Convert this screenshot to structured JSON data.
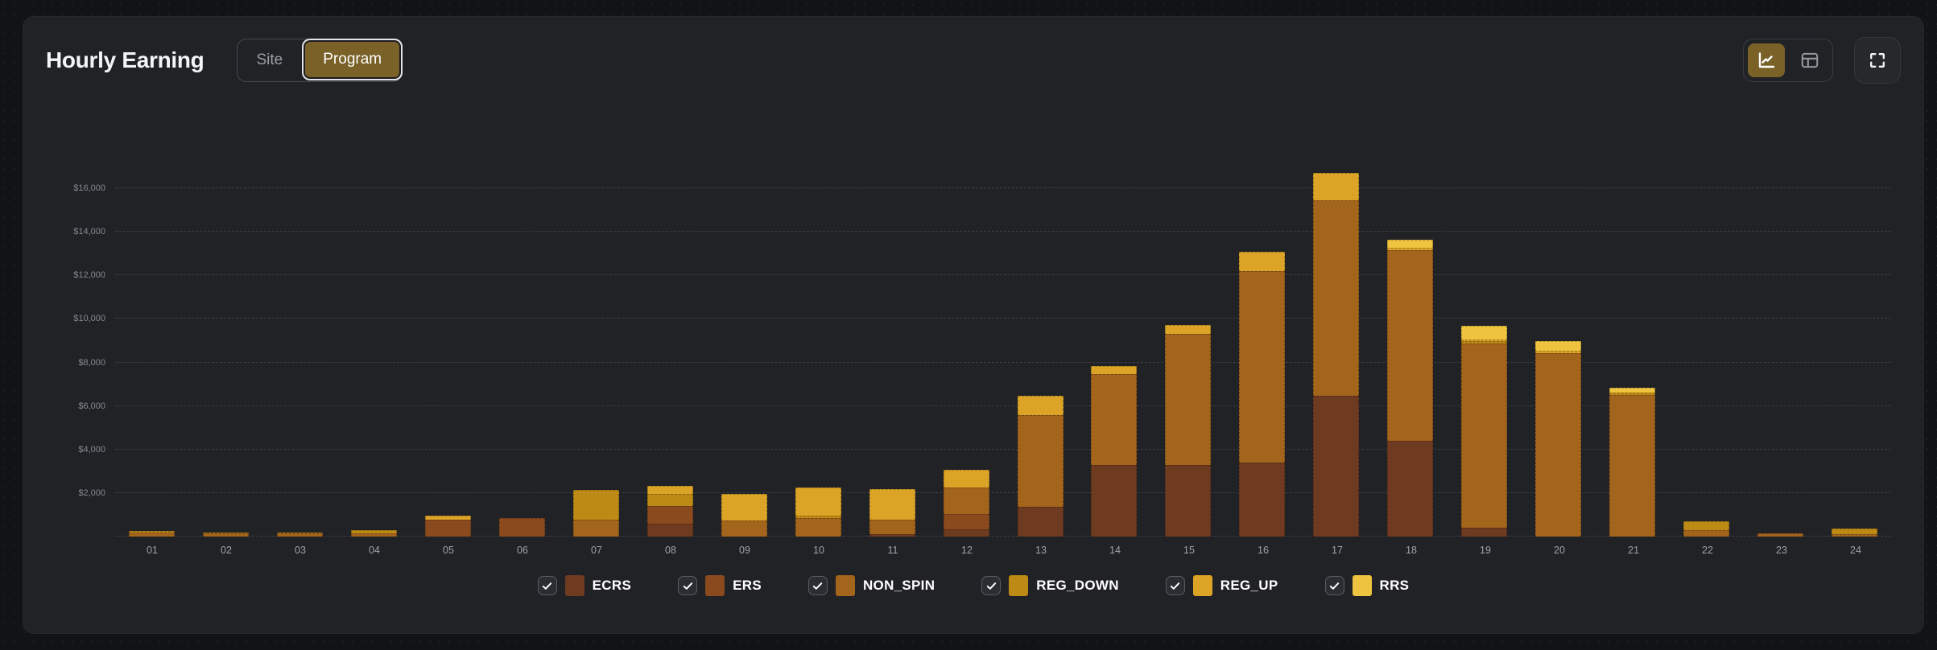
{
  "header": {
    "title": "Hourly Earning",
    "toggle": {
      "options": [
        "Site",
        "Program"
      ],
      "selected": "Program"
    },
    "view_switch": {
      "options": [
        "chart",
        "table"
      ],
      "selected": "chart"
    },
    "fullscreen_button": "fullscreen"
  },
  "colors": {
    "accent": "#7a6128",
    "card_bg": "#212226",
    "page_bg": "#121316",
    "gridline": "#3c3e44"
  },
  "chart_data": {
    "type": "bar",
    "stacked": true,
    "title": "Hourly Earning",
    "xlabel": "",
    "ylabel": "",
    "grid": true,
    "legend_position": "bottom",
    "y_render_max": 20250,
    "ylim": [
      0,
      18000
    ],
    "y_ticks": [
      {
        "label": "",
        "value": 0
      },
      {
        "label": "$2,000",
        "value": 2000
      },
      {
        "label": "$4,000",
        "value": 4000
      },
      {
        "label": "$6,000",
        "value": 6000
      },
      {
        "label": "$8,000",
        "value": 8000
      },
      {
        "label": "$10,000",
        "value": 10000
      },
      {
        "label": "$12,000",
        "value": 12000
      },
      {
        "label": "$14,000",
        "value": 14000
      },
      {
        "label": "$16,000",
        "value": 16000
      }
    ],
    "categories": [
      "01",
      "02",
      "03",
      "04",
      "05",
      "06",
      "07",
      "08",
      "09",
      "10",
      "11",
      "12",
      "13",
      "14",
      "15",
      "16",
      "17",
      "18",
      "19",
      "20",
      "21",
      "22",
      "23",
      "24"
    ],
    "series": [
      {
        "name": "ECRS",
        "color": "#6f3b20",
        "checked": true,
        "values": [
          0,
          0,
          0,
          0,
          0,
          0,
          0,
          575,
          0,
          0,
          110,
          320,
          1365,
          3300,
          3300,
          3410,
          6460,
          4415,
          395,
          0,
          0,
          0,
          0,
          0
        ]
      },
      {
        "name": "ERS",
        "color": "#8a4a1e",
        "checked": true,
        "values": [
          0,
          0,
          0,
          0,
          780,
          860,
          0,
          825,
          0,
          0,
          0,
          720,
          0,
          0,
          0,
          0,
          0,
          0,
          0,
          0,
          0,
          0,
          0,
          0
        ]
      },
      {
        "name": "NON_SPIN",
        "color": "#a3641c",
        "checked": true,
        "values": [
          200,
          130,
          140,
          160,
          0,
          0,
          770,
          0,
          750,
          860,
          680,
          1220,
          4200,
          4165,
          6030,
          8795,
          8975,
          8725,
          8470,
          8440,
          6500,
          290,
          145,
          110
        ]
      },
      {
        "name": "REG_DOWN",
        "color": "#bd8a15",
        "checked": true,
        "values": [
          50,
          50,
          60,
          130,
          0,
          0,
          1380,
          575,
          0,
          100,
          0,
          0,
          0,
          0,
          0,
          0,
          0,
          0,
          105,
          0,
          100,
          430,
          0,
          250
        ]
      },
      {
        "name": "REG_UP",
        "color": "#dba426",
        "checked": true,
        "values": [
          0,
          0,
          0,
          0,
          170,
          0,
          0,
          360,
          1200,
          1300,
          1400,
          825,
          895,
          360,
          400,
          895,
          1255,
          140,
          95,
          105,
          0,
          0,
          0,
          0
        ]
      },
      {
        "name": "RRS",
        "color": "#eec33f",
        "checked": true,
        "values": [
          0,
          0,
          0,
          0,
          0,
          0,
          0,
          0,
          0,
          0,
          0,
          0,
          0,
          0,
          0,
          0,
          0,
          360,
          620,
          430,
          220,
          0,
          0,
          0
        ]
      }
    ]
  }
}
